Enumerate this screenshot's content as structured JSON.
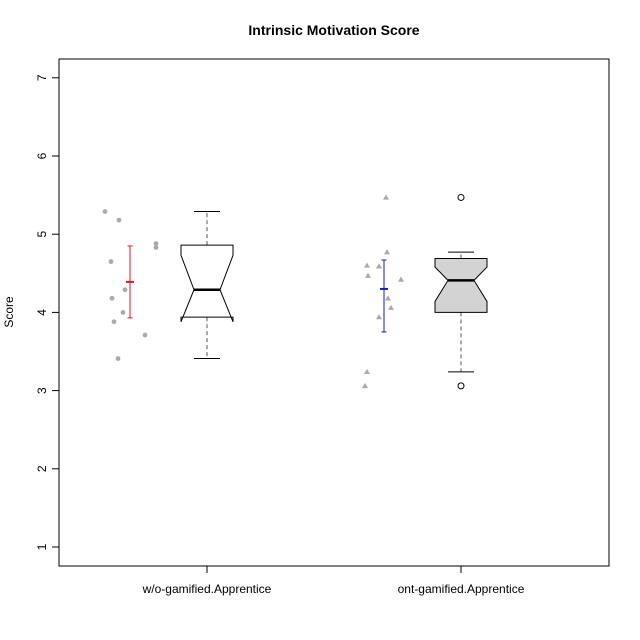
{
  "chart_data": {
    "type": "boxplot",
    "title": "Intrinsic Motivation Score",
    "xlabel": "",
    "ylabel": "Score",
    "ylim": [
      0.75,
      7.3
    ],
    "yticks": [
      1,
      2,
      3,
      4,
      5,
      6,
      7
    ],
    "notched": true,
    "grid": false,
    "categories": [
      "w/o-gamified.Apprentice",
      "ont-gamified.Apprentice"
    ],
    "groups": [
      {
        "name": "w/o-gamified.Apprentice",
        "box_fill": "#ffffff",
        "points_marker": "circle",
        "points_color": "#aaaaaa",
        "points": [
          5.29,
          5.18,
          4.88,
          4.83,
          4.65,
          4.29,
          4.18,
          4.0,
          3.88,
          3.71,
          3.41
        ],
        "mean_ci": {
          "mean": 4.39,
          "lower": 3.93,
          "upper": 4.85,
          "color": "#e8132a"
        },
        "box": {
          "whisker_low": 3.41,
          "q1": 3.94,
          "median": 4.29,
          "q3": 4.86,
          "whisker_high": 5.29,
          "notch_low": 3.88,
          "notch_high": 4.73
        },
        "outliers": []
      },
      {
        "name": "ont-gamified.Apprentice",
        "box_fill": "#d3d3d3",
        "points_marker": "triangle",
        "points_color": "#aaaaaa",
        "points": [
          5.47,
          4.77,
          4.6,
          4.59,
          4.47,
          4.42,
          4.18,
          4.06,
          3.94,
          3.24,
          3.06
        ],
        "mean_ci": {
          "mean": 4.3,
          "lower": 3.75,
          "upper": 4.67,
          "color": "#1a1acc"
        },
        "box": {
          "whisker_low": 3.24,
          "q1": 4.0,
          "median": 4.41,
          "q3": 4.69,
          "whisker_high": 4.77,
          "notch_low": 4.14,
          "notch_high": 4.58
        },
        "outliers": [
          5.47,
          3.06
        ]
      }
    ]
  }
}
